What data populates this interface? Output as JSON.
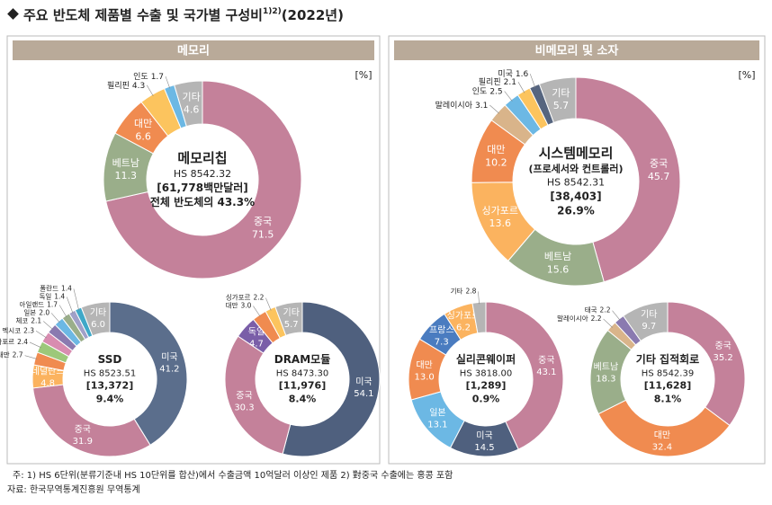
{
  "title": "주요 반도체 제품별 수출 및 국가별 구성비",
  "title_sup": "1)2)",
  "title_suffix": "(2022년)",
  "panels": [
    {
      "title": "메모리",
      "unit": "[%]"
    },
    {
      "title": "비메모리 및 소자",
      "unit": "[%]"
    }
  ],
  "notes": [
    "주: 1) HS 6단위(분류기준내 HS 10단위를 합산)에서 수출금액 10억달러 이상인 제품    2) 對중국 수출에는 홍콩 포함",
    "자료: 한국무역통계진흥원 무역통계"
  ],
  "chart_data": [
    {
      "type": "pie",
      "title": "메모리칩",
      "hs": "HS 8542.32",
      "amount": "[61,778백만달러]",
      "share": "전체 반도체의 43.3%",
      "categories": [
        "중국",
        "베트남",
        "대만",
        "필리핀",
        "인도",
        "기타"
      ],
      "values": [
        71.5,
        11.3,
        6.6,
        4.3,
        1.7,
        4.6
      ],
      "value_labels": [
        "71.5",
        "11.3",
        "6.6",
        "4.3",
        "1.7",
        "4.6"
      ],
      "colors": [
        "#c4819a",
        "#9aae8a",
        "#f08b50",
        "#fcc45e",
        "#6cb8e4",
        "#b5b5b5"
      ]
    },
    {
      "type": "pie",
      "title": "시스템메모리",
      "subtitle": "(프로세서와 컨트롤러)",
      "hs": "HS 8542.31",
      "amount": "[38,403]",
      "share": "26.9%",
      "categories": [
        "중국",
        "베트남",
        "싱가포르",
        "대만",
        "말레이시아",
        "인도",
        "필리핀",
        "미국",
        "기타"
      ],
      "values": [
        45.7,
        15.6,
        13.6,
        10.2,
        3.1,
        2.5,
        2.1,
        1.6,
        5.7
      ],
      "value_labels": [
        "45.7",
        "15.6",
        "13.6",
        "10.2",
        "3.1",
        "2.5",
        "2.1",
        "1.6",
        "5.7"
      ],
      "colors": [
        "#c4819a",
        "#9aae8a",
        "#fbb35f",
        "#f08b50",
        "#d9b48a",
        "#6cb8e4",
        "#fcc45e",
        "#56657f",
        "#b5b5b5"
      ]
    },
    {
      "type": "pie",
      "title": "SSD",
      "hs": "HS 8523.51",
      "amount": "[13,372]",
      "share": "9.4%",
      "categories": [
        "미국",
        "중국",
        "네덜란드",
        "대만",
        "싱가포르",
        "멕시코",
        "체코",
        "일본",
        "아일랜드",
        "독일",
        "폴란드",
        "기타"
      ],
      "values": [
        41.2,
        31.9,
        4.8,
        2.7,
        2.4,
        2.3,
        2.1,
        2.0,
        1.7,
        1.4,
        1.4,
        6.0
      ],
      "value_labels": [
        "41.2",
        "31.9",
        "4.8",
        "2.7",
        "2.4",
        "2.3",
        "2.1",
        "2.0",
        "1.7",
        "1.4",
        "1.4",
        "6.0"
      ],
      "colors": [
        "#5b6e8c",
        "#c4819a",
        "#fbb35f",
        "#f08b50",
        "#9cc87a",
        "#d88cb0",
        "#8a7ab0",
        "#6cb8e4",
        "#9aae8a",
        "#a0a0c8",
        "#3fa8c8",
        "#b5b5b5"
      ]
    },
    {
      "type": "pie",
      "title": "DRAM모듈",
      "hs": "HS 8473.30",
      "amount": "[11,976]",
      "share": "8.4%",
      "categories": [
        "미국",
        "중국",
        "독일",
        "대만",
        "싱가포르",
        "기타"
      ],
      "values": [
        54.1,
        30.3,
        4.7,
        3.0,
        2.2,
        5.7
      ],
      "value_labels": [
        "54.1",
        "30.3",
        "4.7",
        "3.0",
        "2.2",
        "5.7"
      ],
      "colors": [
        "#4f607e",
        "#c4819a",
        "#7a5ea8",
        "#f08b50",
        "#fcc45e",
        "#b5b5b5"
      ]
    },
    {
      "type": "pie",
      "title": "실리콘웨이퍼",
      "hs": "HS 3818.00",
      "amount": "[1,289]",
      "share": "0.9%",
      "categories": [
        "중국",
        "미국",
        "일본",
        "대만",
        "프랑스",
        "싱가포르",
        "기타"
      ],
      "values": [
        43.1,
        14.5,
        13.1,
        13.0,
        7.3,
        6.2,
        2.8
      ],
      "value_labels": [
        "43.1",
        "14.5",
        "13.1",
        "13.0",
        "7.3",
        "6.2",
        "2.8"
      ],
      "colors": [
        "#c4819a",
        "#4f607e",
        "#6cb8e4",
        "#f08b50",
        "#4a7cc0",
        "#fbb35f",
        "#b5b5b5"
      ]
    },
    {
      "type": "pie",
      "title": "기타 집적회로",
      "hs": "HS 8542.39",
      "amount": "[11,628]",
      "share": "8.1%",
      "categories": [
        "중국",
        "대만",
        "베트남",
        "말레이시아",
        "태국",
        "기타"
      ],
      "values": [
        35.2,
        32.4,
        18.3,
        2.2,
        2.2,
        9.7
      ],
      "value_labels": [
        "35.2",
        "32.4",
        "18.3",
        "2.2",
        "2.2",
        "9.7"
      ],
      "colors": [
        "#c4819a",
        "#f08b50",
        "#9aae8a",
        "#d9b48a",
        "#8a7ab0",
        "#b5b5b5"
      ]
    }
  ]
}
